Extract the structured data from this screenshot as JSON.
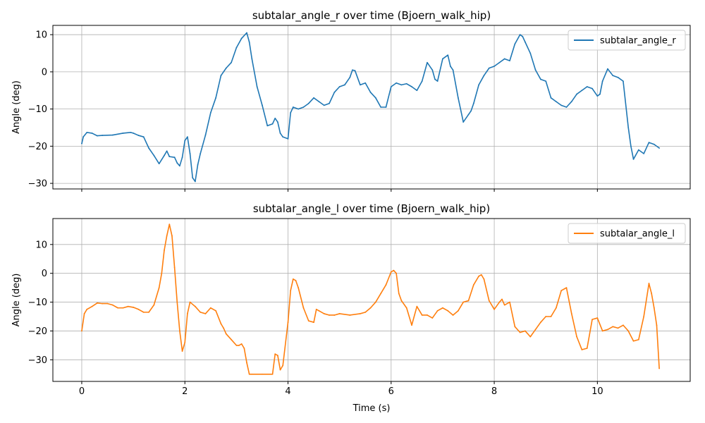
{
  "chart_data": [
    {
      "type": "line",
      "title": "subtalar_angle_r over time (Bjoern_walk_hip)",
      "xlabel": "",
      "ylabel": "Angle (deg)",
      "xlim": [
        -0.56,
        11.8
      ],
      "ylim": [
        -31.5,
        12.5
      ],
      "xticks": [
        0,
        2,
        4,
        6,
        8,
        10
      ],
      "yticks": [
        -30,
        -20,
        -10,
        0,
        10
      ],
      "grid": true,
      "legend_position": "top-right",
      "series": [
        {
          "name": "subtalar_angle_r",
          "color": "#1f77b4",
          "x": [
            0,
            0.03,
            0.1,
            0.2,
            0.3,
            0.4,
            0.6,
            0.8,
            0.95,
            1.0,
            1.1,
            1.2,
            1.3,
            1.4,
            1.5,
            1.6,
            1.65,
            1.7,
            1.8,
            1.85,
            1.9,
            1.95,
            2.0,
            2.05,
            2.1,
            2.15,
            2.2,
            2.25,
            2.3,
            2.4,
            2.5,
            2.6,
            2.65,
            2.7,
            2.8,
            2.9,
            3.0,
            3.1,
            3.2,
            3.25,
            3.3,
            3.4,
            3.5,
            3.6,
            3.7,
            3.75,
            3.8,
            3.85,
            3.9,
            4.0,
            4.05,
            4.1,
            4.2,
            4.3,
            4.4,
            4.5,
            4.6,
            4.7,
            4.8,
            4.9,
            5.0,
            5.1,
            5.2,
            5.25,
            5.3,
            5.4,
            5.5,
            5.6,
            5.7,
            5.8,
            5.9,
            6.0,
            6.1,
            6.2,
            6.3,
            6.4,
            6.5,
            6.6,
            6.7,
            6.8,
            6.85,
            6.9,
            7.0,
            7.1,
            7.15,
            7.2,
            7.3,
            7.4,
            7.5,
            7.55,
            7.6,
            7.7,
            7.8,
            7.9,
            8.0,
            8.1,
            8.2,
            8.3,
            8.4,
            8.5,
            8.55,
            8.6,
            8.7,
            8.8,
            8.9,
            9.0,
            9.1,
            9.2,
            9.3,
            9.4,
            9.5,
            9.6,
            9.7,
            9.8,
            9.9,
            10.0,
            10.05,
            10.1,
            10.2,
            10.3,
            10.4,
            10.5,
            10.6,
            10.65,
            10.7,
            10.8,
            10.9,
            11.0,
            11.1,
            11.2
          ],
          "y": [
            -19.3,
            -17.5,
            -16.3,
            -16.5,
            -17.2,
            -17.1,
            -17.0,
            -16.5,
            -16.3,
            -16.5,
            -17.1,
            -17.5,
            -20.5,
            -22.5,
            -24.7,
            -22.5,
            -21.3,
            -22.8,
            -23.0,
            -24.5,
            -25.3,
            -23.0,
            -18.5,
            -17.5,
            -22.0,
            -28.5,
            -29.5,
            -25.0,
            -22.0,
            -17.0,
            -11.0,
            -7.0,
            -4.0,
            -1.0,
            1.0,
            2.5,
            6.5,
            9.0,
            10.5,
            8.0,
            3.5,
            -4.0,
            -9.0,
            -14.5,
            -14.0,
            -12.5,
            -13.5,
            -16.5,
            -17.5,
            -18.0,
            -11.0,
            -9.5,
            -10.0,
            -9.5,
            -8.5,
            -7.0,
            -8.0,
            -9.0,
            -8.5,
            -5.5,
            -4.0,
            -3.5,
            -1.5,
            0.5,
            0.3,
            -3.5,
            -3.0,
            -5.5,
            -7.0,
            -9.5,
            -9.5,
            -4.0,
            -3.0,
            -3.5,
            -3.2,
            -4.0,
            -5.0,
            -2.5,
            2.5,
            0.5,
            -2.0,
            -2.5,
            3.5,
            4.5,
            1.5,
            0.5,
            -7.0,
            -13.5,
            -11.5,
            -10.5,
            -8.5,
            -3.5,
            -1.0,
            1.0,
            1.5,
            2.5,
            3.5,
            3.0,
            7.5,
            10.0,
            9.5,
            8.0,
            5.0,
            0.5,
            -2.0,
            -2.5,
            -7.0,
            -8.0,
            -9.0,
            -9.5,
            -8.0,
            -6.0,
            -5.0,
            -4.0,
            -4.5,
            -6.5,
            -6.0,
            -2.5,
            0.8,
            -1.0,
            -1.5,
            -2.5,
            -15.0,
            -20.0,
            -23.5,
            -21.0,
            -22.0,
            -19.0,
            -19.5,
            -20.5
          ]
        }
      ]
    },
    {
      "type": "line",
      "title": "subtalar_angle_l over time (Bjoern_walk_hip)",
      "xlabel": "Time (s)",
      "ylabel": "Angle (deg)",
      "xlim": [
        -0.56,
        11.8
      ],
      "ylim": [
        -37.5,
        19
      ],
      "xticks": [
        0,
        2,
        4,
        6,
        8,
        10
      ],
      "yticks": [
        -30,
        -20,
        -10,
        0,
        10
      ],
      "grid": true,
      "legend_position": "top-right",
      "series": [
        {
          "name": "subtalar_angle_l",
          "color": "#ff7f0e",
          "x": [
            0,
            0.05,
            0.1,
            0.2,
            0.3,
            0.4,
            0.5,
            0.6,
            0.7,
            0.8,
            0.9,
            1.0,
            1.1,
            1.2,
            1.3,
            1.4,
            1.5,
            1.55,
            1.6,
            1.65,
            1.7,
            1.75,
            1.8,
            1.85,
            1.9,
            1.95,
            2.0,
            2.05,
            2.1,
            2.2,
            2.3,
            2.4,
            2.5,
            2.6,
            2.7,
            2.75,
            2.8,
            2.9,
            3.0,
            3.05,
            3.1,
            3.15,
            3.2,
            3.25,
            3.3,
            3.5,
            3.7,
            3.75,
            3.8,
            3.85,
            3.9,
            4.0,
            4.05,
            4.1,
            4.15,
            4.2,
            4.3,
            4.4,
            4.5,
            4.55,
            4.6,
            4.7,
            4.8,
            4.9,
            5.0,
            5.2,
            5.4,
            5.5,
            5.6,
            5.7,
            5.8,
            5.9,
            6.0,
            6.05,
            6.1,
            6.15,
            6.2,
            6.3,
            6.4,
            6.5,
            6.6,
            6.7,
            6.8,
            6.9,
            7.0,
            7.1,
            7.2,
            7.3,
            7.4,
            7.5,
            7.6,
            7.7,
            7.75,
            7.8,
            7.9,
            8.0,
            8.1,
            8.15,
            8.2,
            8.3,
            8.4,
            8.5,
            8.6,
            8.7,
            8.8,
            8.9,
            9.0,
            9.1,
            9.2,
            9.3,
            9.4,
            9.5,
            9.6,
            9.7,
            9.8,
            9.9,
            10.0,
            10.1,
            10.2,
            10.3,
            10.4,
            10.5,
            10.6,
            10.7,
            10.8,
            10.9,
            11.0,
            11.05,
            11.1,
            11.15,
            11.2
          ],
          "y": [
            -20.0,
            -14.0,
            -12.5,
            -11.5,
            -10.3,
            -10.5,
            -10.5,
            -11.0,
            -12.0,
            -12.0,
            -11.5,
            -11.8,
            -12.5,
            -13.5,
            -13.5,
            -11.0,
            -5.0,
            0.0,
            8.0,
            13.0,
            17.0,
            13.0,
            2.0,
            -10.0,
            -20.0,
            -27.0,
            -24.0,
            -14.0,
            -10.0,
            -11.5,
            -13.5,
            -14.0,
            -12.0,
            -13.0,
            -17.5,
            -19.0,
            -21.0,
            -23.0,
            -25.0,
            -25.0,
            -24.5,
            -26.0,
            -31.0,
            -35.0,
            -35.0,
            -35.0,
            -35.0,
            -28.0,
            -28.5,
            -33.5,
            -32.0,
            -17.0,
            -6.0,
            -2.0,
            -2.5,
            -5.0,
            -12.0,
            -16.5,
            -17.0,
            -12.5,
            -13.0,
            -14.0,
            -14.5,
            -14.5,
            -14.0,
            -14.5,
            -14.0,
            -13.5,
            -12.0,
            -10.0,
            -7.0,
            -4.0,
            0.5,
            1.0,
            0.0,
            -7.0,
            -9.5,
            -12.0,
            -18.0,
            -11.5,
            -14.5,
            -14.5,
            -15.5,
            -13.0,
            -12.0,
            -13.0,
            -14.5,
            -13.0,
            -10.0,
            -9.5,
            -4.0,
            -1.0,
            -0.5,
            -2.0,
            -9.5,
            -12.5,
            -10.0,
            -9.0,
            -11.0,
            -10.0,
            -18.5,
            -20.5,
            -20.0,
            -22.0,
            -19.5,
            -17.0,
            -15.0,
            -15.0,
            -12.0,
            -6.0,
            -5.0,
            -14.0,
            -22.0,
            -26.5,
            -26.0,
            -16.0,
            -15.5,
            -20.0,
            -19.5,
            -18.5,
            -19.0,
            -18.0,
            -20.0,
            -23.5,
            -23.0,
            -15.0,
            -3.5,
            -7.0,
            -12.0,
            -18.0,
            -33.0
          ]
        }
      ]
    }
  ]
}
